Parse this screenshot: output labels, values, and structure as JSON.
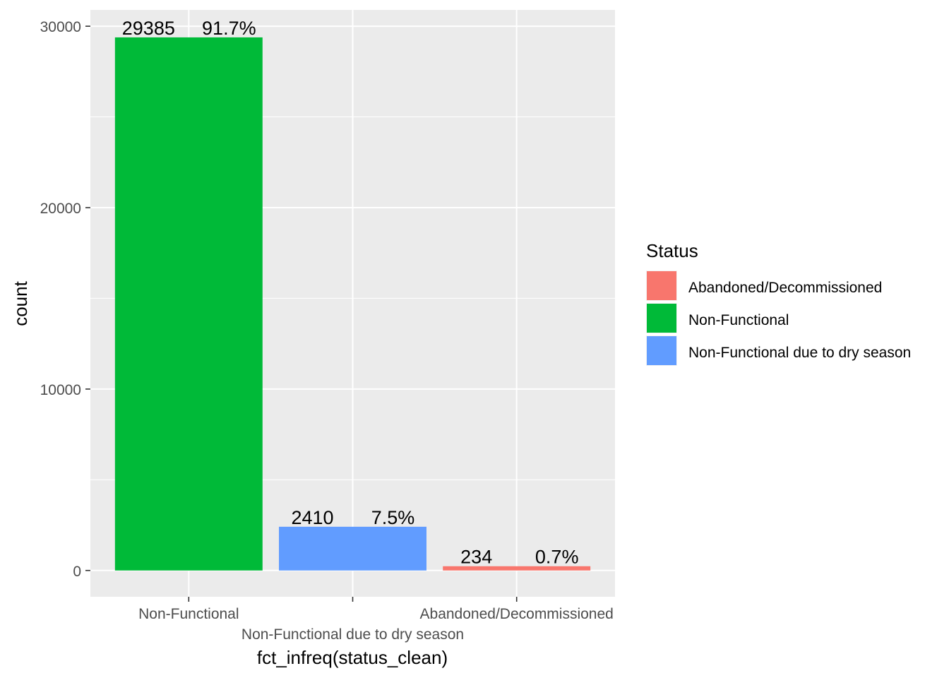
{
  "chart_data": {
    "type": "bar",
    "xlabel": "fct_infreq(status_clean)",
    "ylabel": "count",
    "ylim": [
      -1450,
      30900
    ],
    "yticks": [
      0,
      10000,
      20000,
      30000
    ],
    "grid": true,
    "legend": {
      "title": "Status",
      "position": "right",
      "entries": [
        {
          "label": "Abandoned/Decommissioned",
          "color": "#F8766D"
        },
        {
          "label": "Non-Functional",
          "color": "#00BA38"
        },
        {
          "label": "Non-Functional due to dry season",
          "color": "#619CFF"
        }
      ]
    },
    "bars": [
      {
        "category": "Non-Functional",
        "value": 29385,
        "count_label": "29385",
        "percent_label": "91.7%",
        "color": "#00BA38"
      },
      {
        "category": "Non-Functional due to dry season",
        "value": 2410,
        "count_label": "2410",
        "percent_label": "7.5%",
        "color": "#619CFF"
      },
      {
        "category": "Abandoned/Decommissioned",
        "value": 234,
        "count_label": "234",
        "percent_label": "0.7%",
        "color": "#F8766D"
      }
    ]
  }
}
